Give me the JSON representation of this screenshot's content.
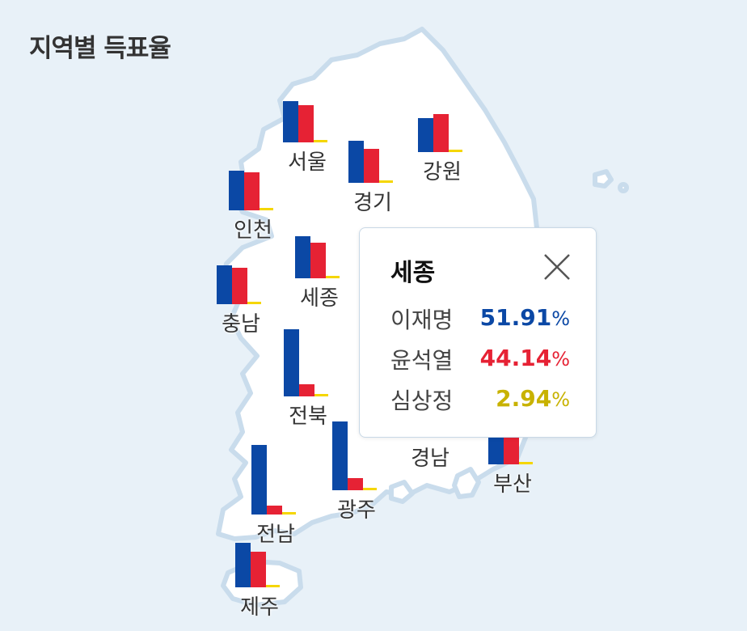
{
  "title": "지역별 득표율",
  "colors": {
    "candidate1": "#0b48a5",
    "candidate2": "#e62234",
    "candidate3": "#f5d600",
    "candidate3_text": "#c8b200"
  },
  "regions": [
    {
      "name": "서울",
      "shares": [
        50.56,
        45.73,
        2.93
      ]
    },
    {
      "name": "인천",
      "shares": [
        48.91,
        47.05,
        2.79
      ]
    },
    {
      "name": "경기",
      "shares": [
        52.2,
        41.71,
        3.12
      ]
    },
    {
      "name": "강원",
      "shares": [
        41.56,
        47.27,
        2.98
      ]
    },
    {
      "name": "세종",
      "shares": [
        51.91,
        44.14,
        2.94
      ]
    },
    {
      "name": "충남",
      "shares": [
        47.68,
        45.36,
        2.86
      ]
    },
    {
      "name": "전북",
      "shares": [
        82.65,
        14.6,
        1.84
      ]
    },
    {
      "name": "전남",
      "shares": [
        85.87,
        11.25,
        1.51
      ]
    },
    {
      "name": "광주",
      "shares": [
        84.77,
        14.66,
        1.66
      ]
    },
    {
      "name": "경남",
      "shares": []
    },
    {
      "name": "부산",
      "shares": [
        40.14,
        51.39,
        2.78
      ]
    },
    {
      "name": "제주",
      "shares": [
        54.76,
        43.94,
        2.6
      ]
    }
  ],
  "popup": {
    "region": "세종",
    "close_icon": "close-icon",
    "candidates": [
      {
        "name": "이재명",
        "value": "51.91",
        "unit": "%",
        "color": "#0b48a5"
      },
      {
        "name": "윤석열",
        "value": "44.14",
        "unit": "%",
        "color": "#e62234"
      },
      {
        "name": "심상정",
        "value": "2.94",
        "unit": "%",
        "color": "#c8b200"
      }
    ]
  }
}
